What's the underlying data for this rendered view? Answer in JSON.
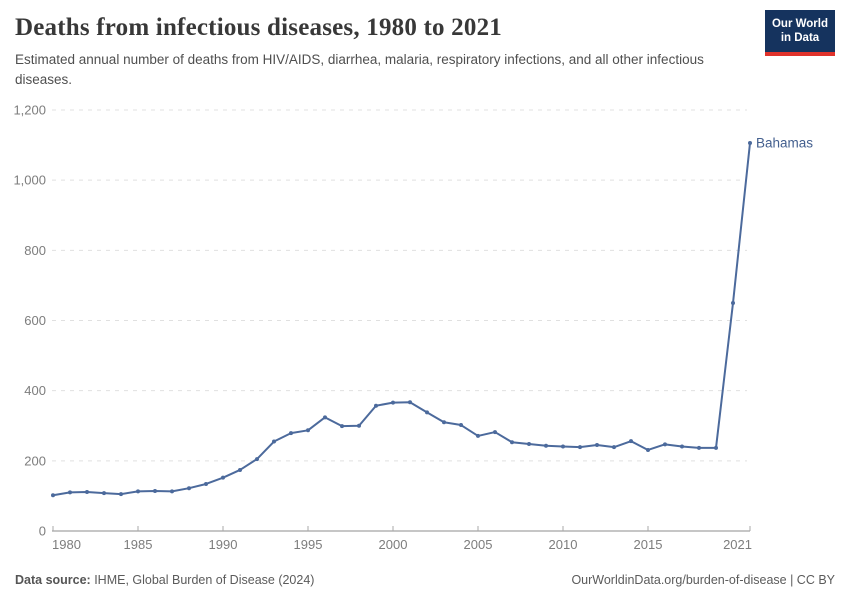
{
  "header": {
    "title": "Deaths from infectious diseases, 1980 to 2021",
    "subtitle": "Estimated annual number of deaths from HIV/AIDS, diarrhea, malaria, respiratory infections, and all other infectious diseases.",
    "logo": {
      "line1": "Our World",
      "line2": "in Data"
    }
  },
  "chart_data": {
    "type": "line",
    "title": "Deaths from infectious diseases, 1980 to 2021",
    "xlabel": "",
    "ylabel": "",
    "xlim": [
      1980,
      2021
    ],
    "ylim": [
      0,
      1200
    ],
    "grid": "horizontal-dashed",
    "legend_position": "end-of-line-label",
    "xticks": [
      1980,
      1985,
      1990,
      1995,
      2000,
      2005,
      2010,
      2015,
      2021
    ],
    "yticks": [
      0,
      200,
      400,
      600,
      800,
      1000,
      1200
    ],
    "series": [
      {
        "name": "Bahamas",
        "color": "#4c6a9c",
        "years": [
          1980,
          1981,
          1982,
          1983,
          1984,
          1985,
          1986,
          1987,
          1988,
          1989,
          1990,
          1991,
          1992,
          1993,
          1994,
          1995,
          1996,
          1997,
          1998,
          1999,
          2000,
          2001,
          2002,
          2003,
          2004,
          2005,
          2006,
          2007,
          2008,
          2009,
          2010,
          2011,
          2012,
          2013,
          2014,
          2015,
          2016,
          2017,
          2018,
          2019,
          2020,
          2021
        ],
        "values": [
          102,
          110,
          111,
          108,
          105,
          113,
          114,
          113,
          122,
          134,
          152,
          174,
          205,
          255,
          279,
          287,
          324,
          299,
          300,
          357,
          366,
          367,
          338,
          310,
          302,
          271,
          282,
          253,
          248,
          243,
          241,
          239,
          245,
          239,
          256,
          231,
          247,
          241,
          237,
          237,
          650,
          1106
        ]
      }
    ],
    "end_label": "Bahamas",
    "colors": {
      "line": "#4c6a9c",
      "end_label": "#44608f",
      "gridline": "#e0e0e0",
      "axis_line": "#8c8c8c",
      "tick_mark": "#a8a8a8",
      "axis_text": "#7d7d7d"
    }
  },
  "footer": {
    "source_label": "Data source:",
    "source_text": " IHME, Global Burden of Disease (2024)",
    "credit": "OurWorldinData.org/burden-of-disease | CC BY"
  }
}
